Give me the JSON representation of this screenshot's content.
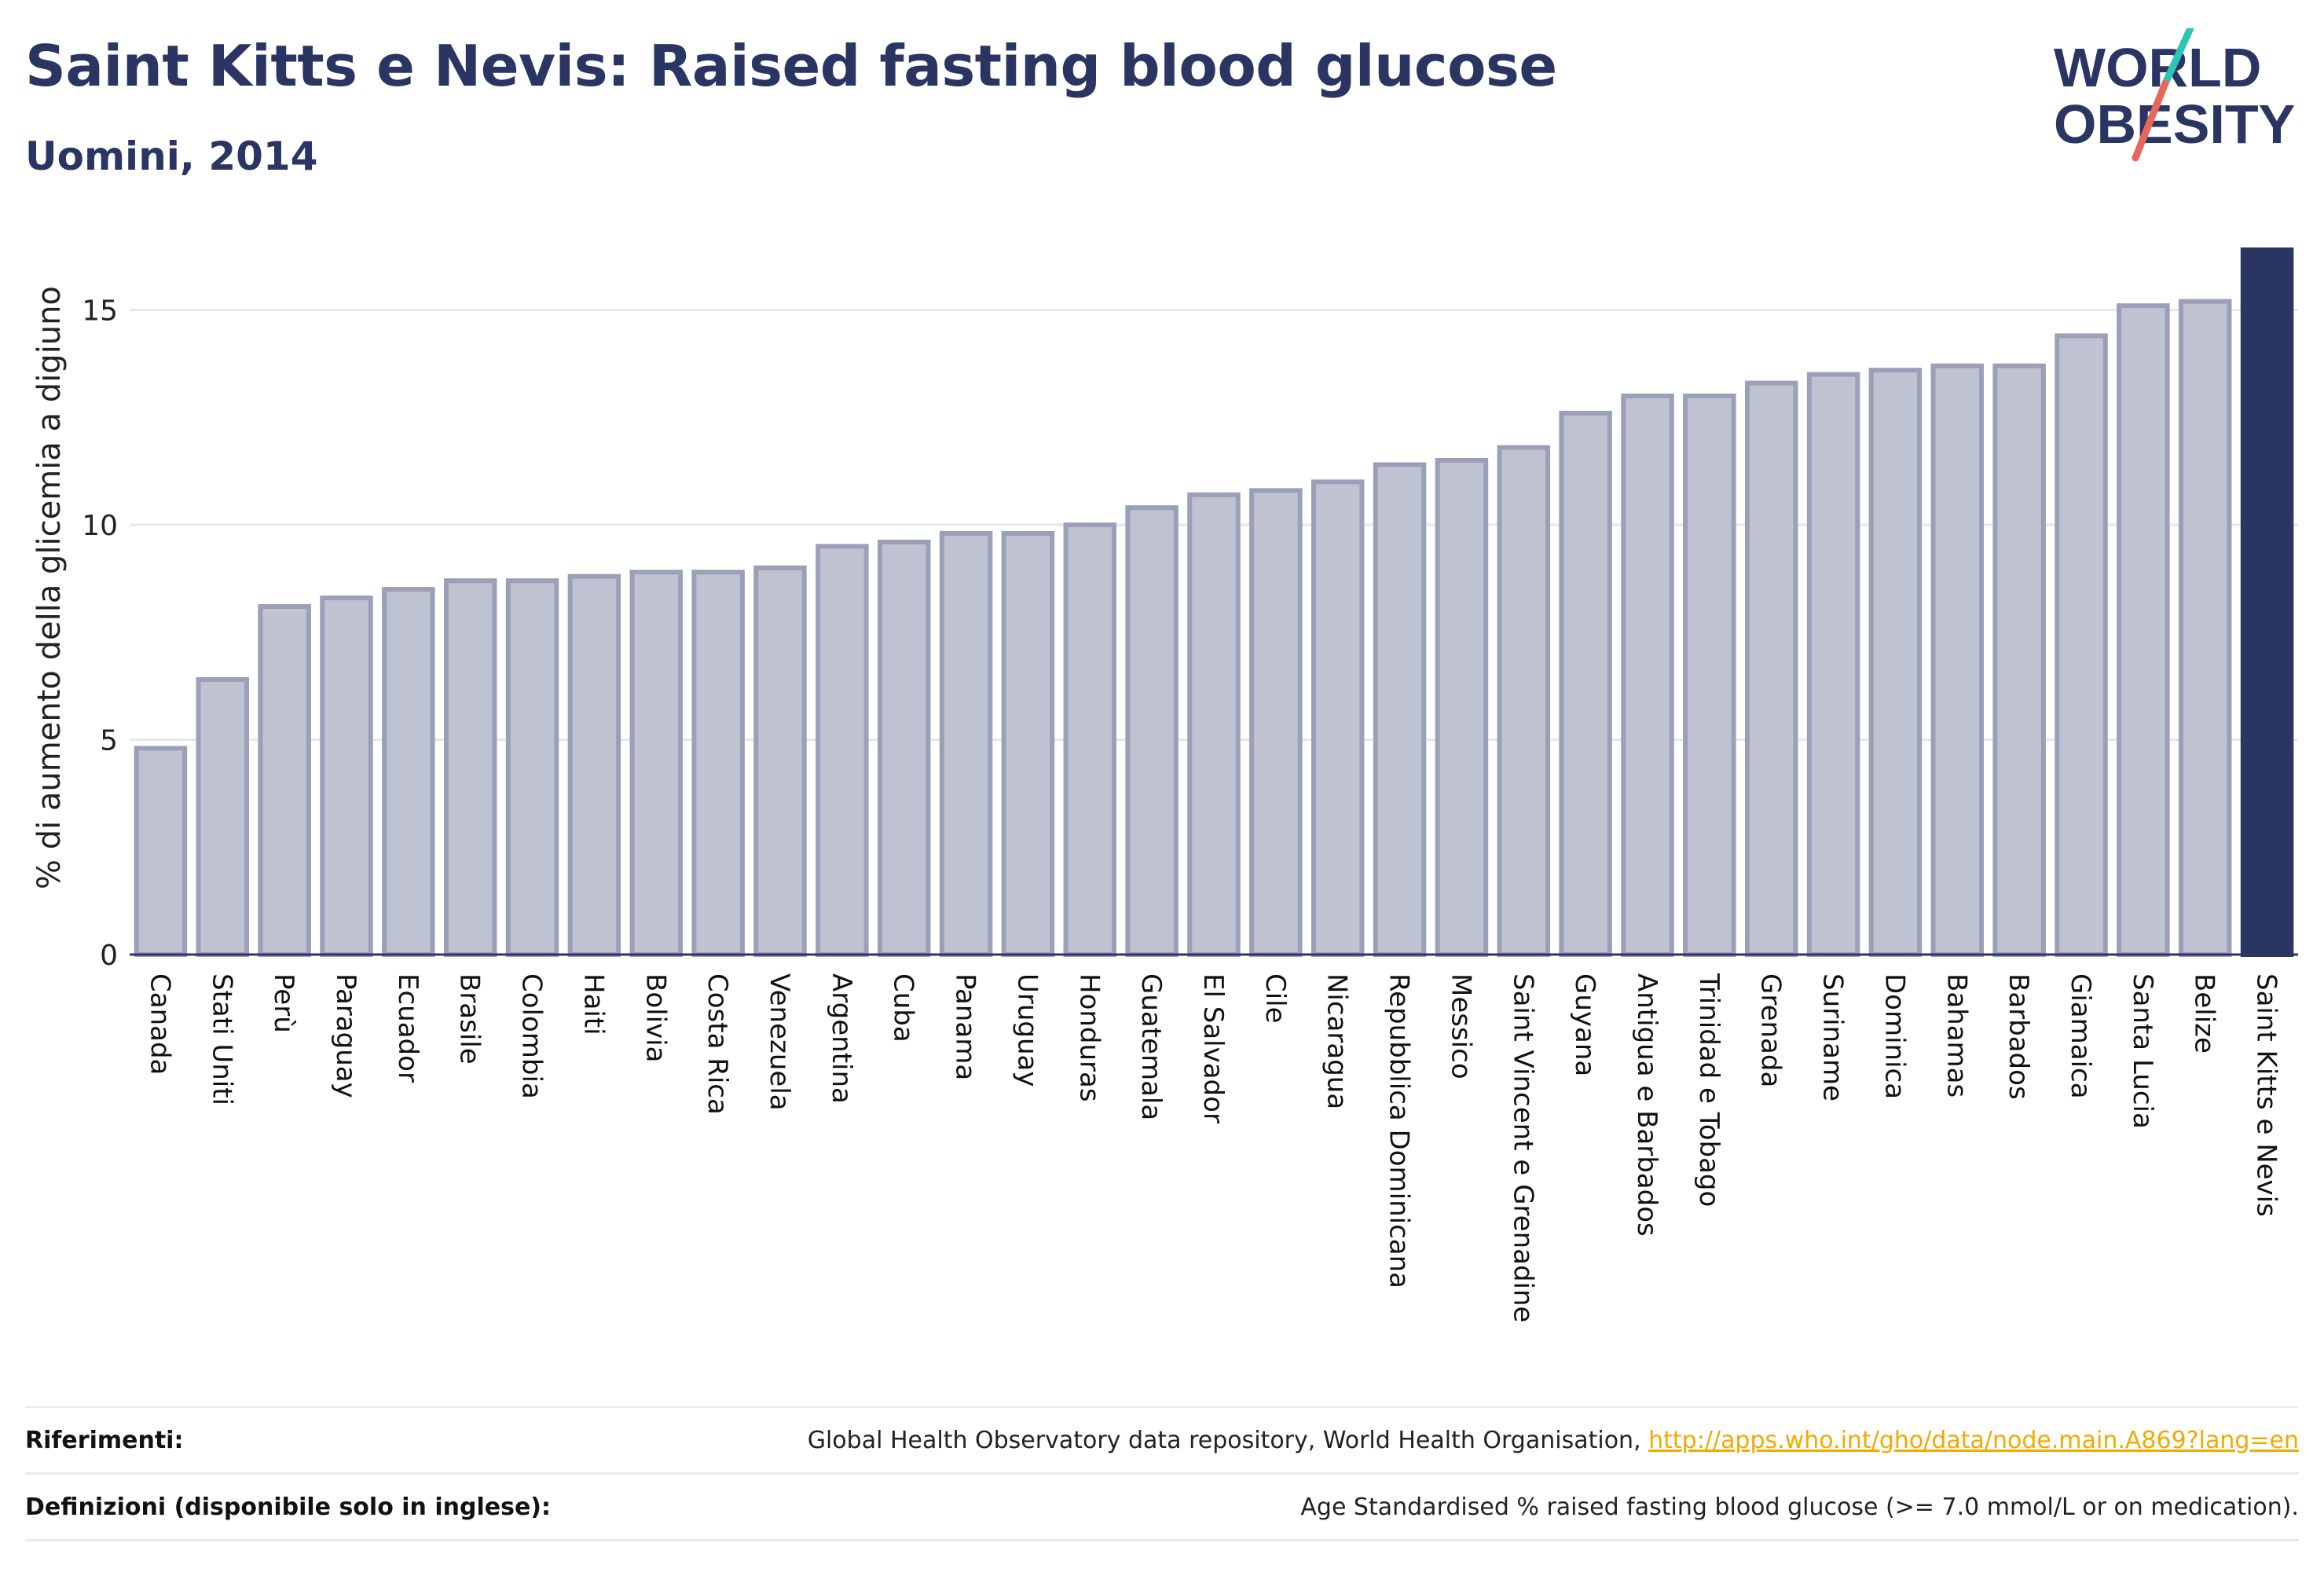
{
  "header": {
    "title": "Saint Kitts e Nevis: Raised fasting blood glucose",
    "subtitle": "Uomini, 2014"
  },
  "logo": {
    "line1": "WORLD",
    "line2": "OBESITY",
    "colors": {
      "text": "#2a3563",
      "slash_red": "#e8675a",
      "slash_teal": "#2ec4b6"
    }
  },
  "chart_data": {
    "type": "bar",
    "ylabel": "% di aumento della glicemia a digiuno",
    "xlabel": "",
    "ylim": [
      0,
      16.4
    ],
    "yticks": [
      0,
      5,
      10,
      15
    ],
    "grid": true,
    "highlight": "Saint Kitts e Nevis",
    "colors": {
      "bar": "#bfc3d1",
      "bar_border": "#9aa0b8",
      "highlight": "#2a3563"
    },
    "categories": [
      "Canada",
      "Stati Uniti",
      "Perù",
      "Paraguay",
      "Ecuador",
      "Brasile",
      "Colombia",
      "Haiti",
      "Bolivia",
      "Costa Rica",
      "Venezuela",
      "Argentina",
      "Cuba",
      "Panama",
      "Uruguay",
      "Honduras",
      "Guatemala",
      "El Salvador",
      "Cile",
      "Nicaragua",
      "Repubblica Dominicana",
      "Messico",
      "Saint Vincent e Grenadine",
      "Guyana",
      "Antigua e Barbados",
      "Trinidad e Tobago",
      "Grenada",
      "Suriname",
      "Dominica",
      "Bahamas",
      "Barbados",
      "Giamaica",
      "Santa Lucia",
      "Belize",
      "Saint Kitts e Nevis"
    ],
    "values": [
      4.8,
      6.4,
      8.1,
      8.3,
      8.5,
      8.7,
      8.7,
      8.8,
      8.9,
      8.9,
      9.0,
      9.5,
      9.6,
      9.8,
      9.8,
      10.0,
      10.4,
      10.7,
      10.8,
      11.0,
      11.4,
      11.5,
      11.8,
      12.6,
      13.0,
      13.0,
      13.3,
      13.5,
      13.6,
      13.7,
      13.7,
      14.4,
      15.1,
      15.2,
      16.4
    ]
  },
  "footer": {
    "references_label": "Riferimenti:",
    "references_text": "Global Health Observatory data repository, World Health Organisation, ",
    "references_link": "http://apps.who.int/gho/data/node.main.A869?lang=en",
    "definitions_label": "Definizioni (disponibile solo in inglese):",
    "definitions_text": "Age Standardised % raised fasting blood glucose (>= 7.0 mmol/L or on medication)."
  }
}
